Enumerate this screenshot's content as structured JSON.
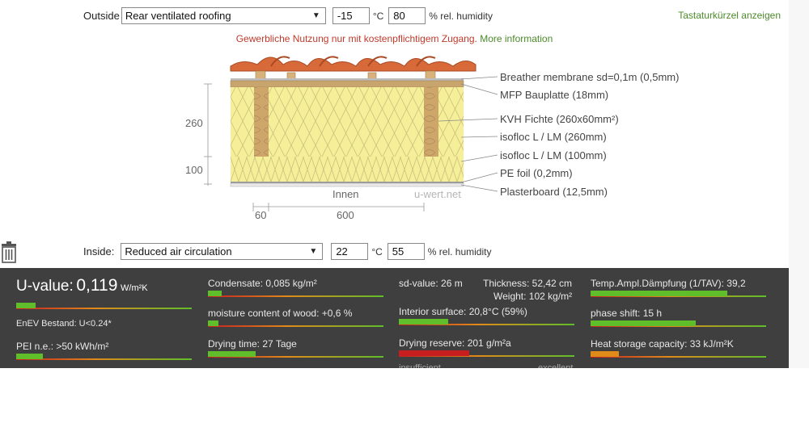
{
  "outside": {
    "label": "Outside",
    "construction": "Rear ventilated roofing",
    "temperature": "-15",
    "temp_unit": "°C",
    "humidity": "80",
    "humidity_unit": "% rel. humidity"
  },
  "shortcut_link": "Tastaturkürzel anzeigen",
  "notice": {
    "text": "Gewerbliche Nutzung nur mit kostenpflichtigem Zugang.",
    "link": "More information"
  },
  "diagram": {
    "layers": [
      "Breather membrane sd=0,1m (0,5mm)",
      "MFP Bauplatte (18mm)",
      "KVH Fichte (260x60mm²)",
      "isofloc L / LM (260mm)",
      "isofloc L / LM (100mm)",
      "PE foil (0,2mm)",
      "Plasterboard (12,5mm)"
    ],
    "dim_260": "260",
    "dim_100": "100",
    "dim_60": "60",
    "dim_600": "600",
    "inner_label": "Innen",
    "watermark": "u-wert.net"
  },
  "inside": {
    "label": "Inside:",
    "construction": "Reduced air circulation",
    "temperature": "22",
    "temp_unit": "°C",
    "humidity": "55",
    "humidity_unit": "% rel. humidity"
  },
  "results": {
    "u_value": {
      "label": "U-value:",
      "value": "0,119",
      "unit": "W/m²K",
      "level": 0.11
    },
    "enev": "EnEV Bestand: U<0.24*",
    "pei": {
      "text": "PEI n.e.: >50 kWh/m²",
      "level": 0.15
    },
    "condensate": {
      "text": "Condensate: 0,085 kg/m²",
      "level": 0.08
    },
    "moisture": {
      "text": "moisture content of wood: +0,6 %",
      "level": 0.06
    },
    "drying_time": {
      "text": "Drying time: 27 Tage",
      "level": 0.27
    },
    "sd_value": "sd-value: 26 m",
    "thickness": "Thickness: 52,42 cm",
    "weight": "Weight: 102 kg/m²",
    "interior_surface": {
      "text": "Interior surface: 20,8°C (59%)",
      "level": 0.28
    },
    "drying_reserve": {
      "text": "Drying reserve: 201 g/m²a",
      "level": 0.4
    },
    "temp_ampl": {
      "text": "Temp.Ampl.Dämpfung (1/TAV): 39,2",
      "level": 0.78
    },
    "phase_shift": {
      "text": "phase shift: 15 h",
      "level": 0.6
    },
    "heat_storage": {
      "text": "Heat storage capacity: 33 kJ/m²K",
      "level": 0.16
    },
    "scale_low": "insufficient",
    "scale_high": "excellent"
  },
  "colors": {
    "green": "#5fbe2a",
    "red": "#c71f1f",
    "orange": "#e08a1a",
    "panel": "#3f3f3f"
  }
}
